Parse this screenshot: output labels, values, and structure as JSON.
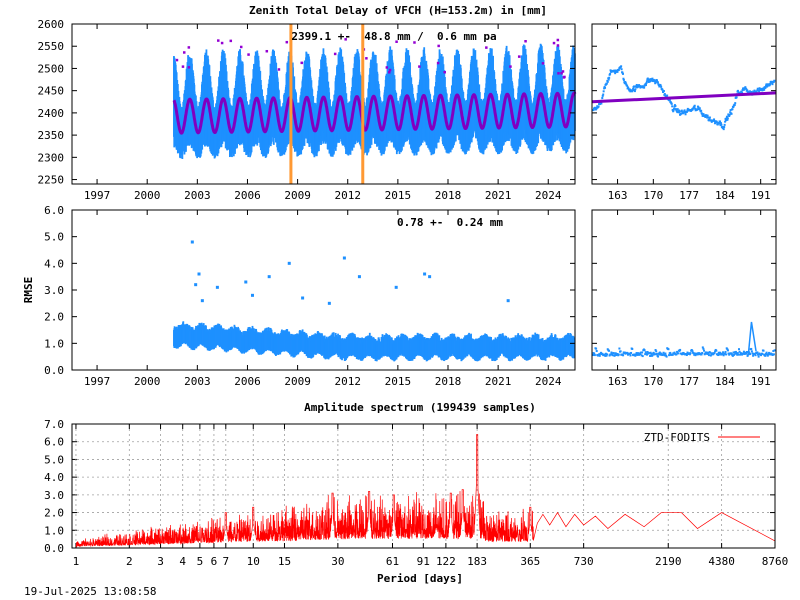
{
  "footer_timestamp": "19-Jul-2025 13:08:58",
  "chart_data": [
    {
      "id": "ztd_timeseries",
      "type": "scatter",
      "title": "Zenith Total Delay of VFCH (H=153.2m) in [mm]",
      "xlabel": "",
      "ylabel": "",
      "annotation": "2399.1 +-  48.8 mm /  0.6 mm pa",
      "x_range": [
        1995.5,
        2025.6
      ],
      "ylim": [
        2240,
        2600
      ],
      "x_ticks": [
        "1997",
        "2000",
        "2003",
        "2006",
        "2009",
        "2012",
        "2015",
        "2018",
        "2021",
        "2024"
      ],
      "y_ticks": [
        "2250",
        "2300",
        "2350",
        "2400",
        "2450",
        "2500",
        "2550",
        "2600"
      ],
      "data_start_year": 2001.6,
      "data_end_year": 2025.6,
      "model_mean": 2399.1,
      "model_amplitude": 38,
      "scatter_std": 48.8,
      "trend_mm_per_year": 0.6,
      "vertical_markers_year": [
        2008.6,
        2012.9
      ],
      "colors": {
        "observations": "#1e90ff",
        "model_fit": "#8000c0",
        "outliers": "#9400d3",
        "markers": "#ff9933"
      }
    },
    {
      "id": "ztd_zoom",
      "type": "scatter",
      "title": "",
      "x_range": [
        158,
        194
      ],
      "ylim": [
        2240,
        2600
      ],
      "x_ticks": [
        "163",
        "170",
        "177",
        "184",
        "191"
      ],
      "trend_start": 2425,
      "trend_end": 2445,
      "colors": {
        "observations": "#1e90ff",
        "trend": "#8000c0"
      }
    },
    {
      "id": "rmse_timeseries",
      "type": "scatter",
      "title": "",
      "xlabel": "",
      "ylabel": "RMSE",
      "annotation": "0.78 +-  0.24 mm",
      "x_range": [
        1995.5,
        2025.6
      ],
      "ylim": [
        0,
        6
      ],
      "x_ticks": [
        "1997",
        "2000",
        "2003",
        "2006",
        "2009",
        "2012",
        "2015",
        "2018",
        "2021",
        "2024"
      ],
      "y_ticks": [
        "0.0",
        "1.0",
        "2.0",
        "3.0",
        "4.0",
        "5.0",
        "6.0"
      ],
      "mean": 0.78,
      "std": 0.24,
      "outliers": [
        {
          "x": 2002.7,
          "y": 4.8
        },
        {
          "x": 2002.9,
          "y": 3.2
        },
        {
          "x": 2003.1,
          "y": 3.6
        },
        {
          "x": 2003.3,
          "y": 2.6
        },
        {
          "x": 2004.2,
          "y": 3.1
        },
        {
          "x": 2005.9,
          "y": 3.3
        },
        {
          "x": 2006.3,
          "y": 2.8
        },
        {
          "x": 2007.3,
          "y": 3.5
        },
        {
          "x": 2008.5,
          "y": 4.0
        },
        {
          "x": 2009.3,
          "y": 2.7
        },
        {
          "x": 2010.9,
          "y": 2.5
        },
        {
          "x": 2011.8,
          "y": 4.2
        },
        {
          "x": 2012.7,
          "y": 3.5
        },
        {
          "x": 2014.9,
          "y": 3.1
        },
        {
          "x": 2016.6,
          "y": 3.6
        },
        {
          "x": 2016.9,
          "y": 3.5
        },
        {
          "x": 2021.6,
          "y": 2.6
        }
      ],
      "colors": {
        "observations": "#1e90ff"
      }
    },
    {
      "id": "rmse_zoom",
      "type": "scatter",
      "title": "",
      "x_range": [
        158,
        194
      ],
      "ylim": [
        0,
        6
      ],
      "x_ticks": [
        "163",
        "170",
        "177",
        "184",
        "191"
      ],
      "level": 0.6,
      "spike": {
        "x": 189.2,
        "y": 1.8
      },
      "colors": {
        "observations": "#1e90ff"
      }
    },
    {
      "id": "amplitude_spectrum",
      "type": "line",
      "title": "Amplitude spectrum (199439 samples)",
      "xlabel": "Period [days]",
      "ylabel": "",
      "x_scale": "log",
      "x_range": [
        0.95,
        8760
      ],
      "ylim": [
        0,
        7
      ],
      "x_ticks": [
        "1",
        "2",
        "3",
        "4",
        "5",
        "6",
        "7",
        "10",
        "15",
        "30",
        "61",
        "91",
        "122",
        "183",
        "365",
        "730",
        "2190",
        "4380",
        "8760"
      ],
      "y_ticks": [
        "0.0",
        "1.0",
        "2.0",
        "3.0",
        "4.0",
        "5.0",
        "6.0",
        "7.0"
      ],
      "grid": true,
      "legend_position": "top-right",
      "series": [
        {
          "name": "ZTD-FODITS",
          "color": "#ff0000",
          "peaks": [
            {
              "x": 183,
              "y": 6.4
            },
            {
              "x": 365,
              "y": 2.3
            },
            {
              "x": 152,
              "y": 3.3
            },
            {
              "x": 130,
              "y": 3.1
            },
            {
              "x": 62,
              "y": 3.0
            },
            {
              "x": 45,
              "y": 3.2
            },
            {
              "x": 28,
              "y": 3.1
            },
            {
              "x": 10,
              "y": 2.3
            },
            {
              "x": 7,
              "y": 2.0
            }
          ],
          "long_period": [
            {
              "x": 400,
              "y": 1.4
            },
            {
              "x": 430,
              "y": 1.9
            },
            {
              "x": 470,
              "y": 1.3
            },
            {
              "x": 520,
              "y": 2.0
            },
            {
              "x": 580,
              "y": 1.2
            },
            {
              "x": 650,
              "y": 1.9
            },
            {
              "x": 730,
              "y": 1.3
            },
            {
              "x": 850,
              "y": 1.8
            },
            {
              "x": 1000,
              "y": 1.1
            },
            {
              "x": 1250,
              "y": 1.9
            },
            {
              "x": 1600,
              "y": 1.2
            },
            {
              "x": 2000,
              "y": 2.0
            },
            {
              "x": 2600,
              "y": 2.0
            },
            {
              "x": 3200,
              "y": 1.1
            },
            {
              "x": 4380,
              "y": 2.0
            },
            {
              "x": 8760,
              "y": 0.4
            }
          ]
        }
      ]
    }
  ]
}
